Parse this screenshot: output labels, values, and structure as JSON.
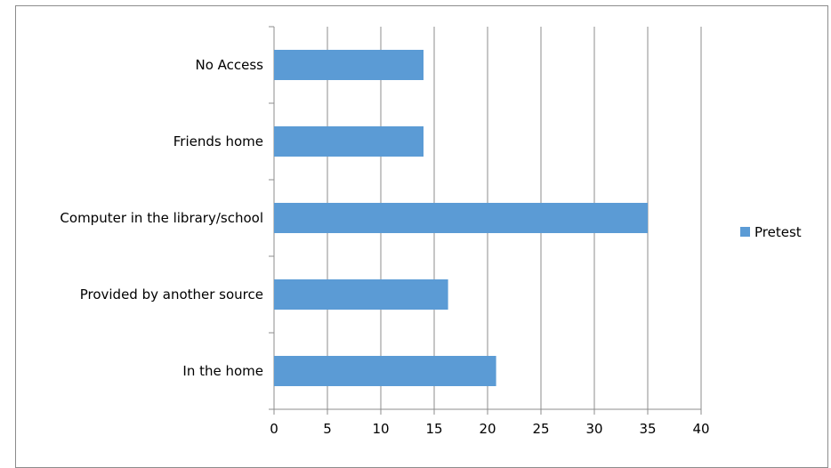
{
  "chart_data": {
    "type": "bar",
    "orientation": "horizontal",
    "title": "",
    "xlabel": "",
    "ylabel": "",
    "categories": [
      "No Access",
      "Friends home",
      "Computer in the library/school",
      "Provided by another source",
      "In the home"
    ],
    "series": [
      {
        "name": "Pretest",
        "values": [
          14,
          14,
          35,
          16.3,
          20.8
        ],
        "color": "#5b9bd5"
      }
    ],
    "xlim": [
      0,
      40
    ],
    "xticks": [
      "0",
      "5",
      "10",
      "15",
      "20",
      "25",
      "30",
      "35",
      "40"
    ],
    "grid": true,
    "legend": "right"
  }
}
